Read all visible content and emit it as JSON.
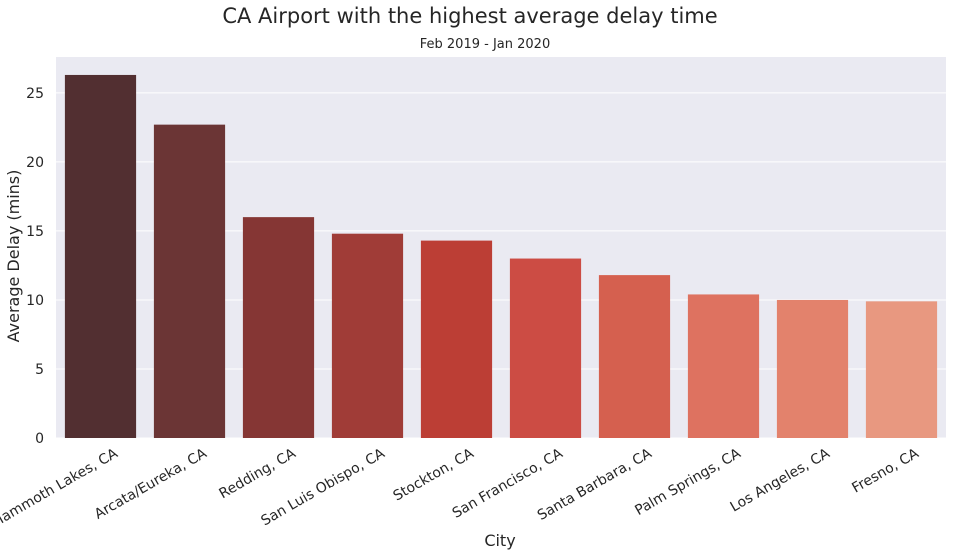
{
  "chart_data": {
    "type": "bar",
    "title": "CA Airport with the highest average delay time",
    "subtitle": "Feb 2019 - Jan 2020",
    "xlabel": "City",
    "ylabel": "Average Delay (mins)",
    "categories": [
      "Mammoth Lakes, CA",
      "Arcata/Eureka, CA",
      "Redding, CA",
      "San Luis Obispo, CA",
      "Stockton, CA",
      "San Francisco, CA",
      "Santa Barbara, CA",
      "Palm Springs, CA",
      "Los Angeles, CA",
      "Fresno, CA"
    ],
    "values": [
      26.3,
      22.7,
      16.0,
      14.8,
      14.3,
      13.0,
      11.8,
      10.4,
      10.0,
      9.9
    ],
    "bar_colors": [
      "#522F31",
      "#6B3535",
      "#853634",
      "#A03C37",
      "#BC3E35",
      "#CC4C44",
      "#D5604F",
      "#DE7260",
      "#E3826C",
      "#E89880"
    ],
    "ylim": [
      0,
      27.6
    ],
    "yticks": [
      0,
      5,
      10,
      15,
      20,
      25
    ],
    "grid": true,
    "plot_background": "#EAEAF2",
    "grid_color": "#FFFFFF"
  }
}
